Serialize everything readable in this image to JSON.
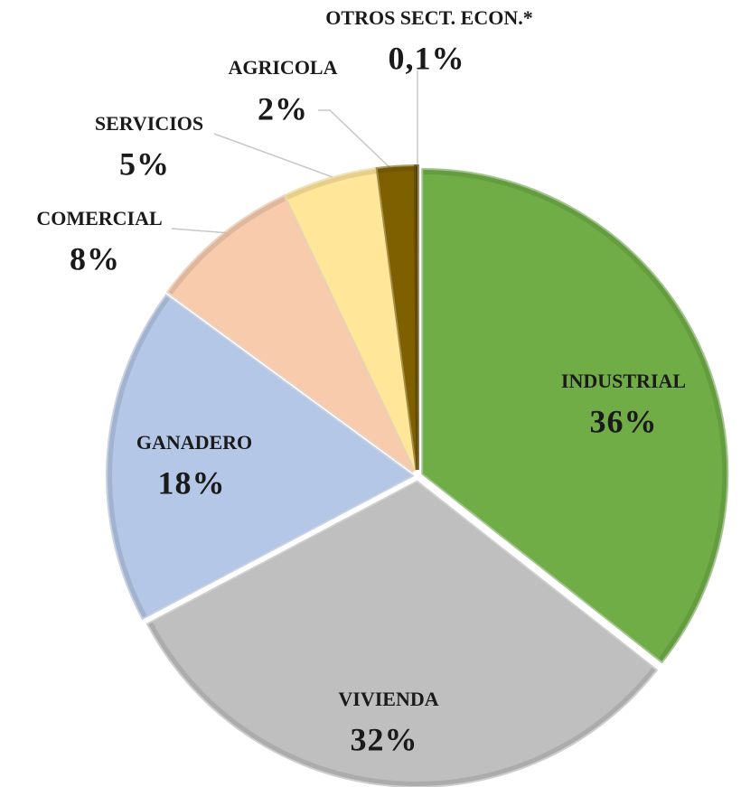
{
  "chart_data": {
    "type": "pie",
    "categories": [
      "INDUSTRIAL",
      "VIVIENDA",
      "GANADERO",
      "COMERCIAL",
      "SERVICIOS",
      "AGRICOLA",
      "OTROS SECT. ECON.*"
    ],
    "values": [
      36,
      32,
      18,
      8,
      5,
      2,
      0.1
    ],
    "value_labels": [
      "36%",
      "32%",
      "18%",
      "8%",
      "5%",
      "2%",
      "0,1%"
    ],
    "colors": [
      "#70ad47",
      "#bfbfbf",
      "#b4c7e7",
      "#f8cbad",
      "#ffe699",
      "#7f6000",
      "#5a4500"
    ]
  }
}
